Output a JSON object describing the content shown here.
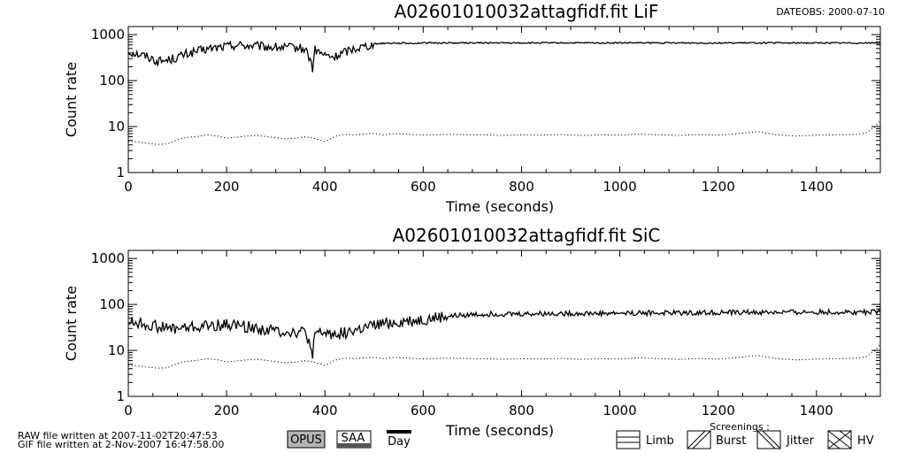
{
  "header": {
    "dateobs": "DATEOBS: 2000-07-10"
  },
  "footer": {
    "raw_written": "RAW file written at 2007-11-02T20:47:53",
    "gif_written": "GIF file written at  2-Nov-2007 16:47:58.00",
    "opus": "OPUS",
    "saa": "SAA",
    "day": "Day",
    "screenings_title": "Screenings :",
    "screenings": [
      "Limb",
      "Burst",
      "Jitter",
      "HV"
    ]
  },
  "chart_data": [
    {
      "type": "line",
      "title": "A02601010032attagfidf.fit  LiF",
      "xlabel": "Time (seconds)",
      "ylabel": "Count rate",
      "xlim": [
        0,
        1530
      ],
      "ylim": [
        1,
        1500
      ],
      "yscale": "log",
      "x_ticks": [
        "0",
        "200",
        "400",
        "600",
        "800",
        "1000",
        "1200",
        "1400"
      ],
      "y_ticks": [
        "1",
        "10",
        "100",
        "1000"
      ],
      "grid": false,
      "series": [
        {
          "style": "solid",
          "x": [
            0,
            20,
            40,
            60,
            80,
            100,
            120,
            140,
            160,
            180,
            200,
            220,
            240,
            260,
            280,
            300,
            320,
            340,
            360,
            375,
            380,
            400,
            420,
            440,
            460,
            480,
            500,
            520,
            540,
            560,
            580,
            600,
            650,
            700,
            750,
            800,
            850,
            900,
            950,
            1000,
            1050,
            1100,
            1150,
            1200,
            1250,
            1300,
            1350,
            1400,
            1450,
            1500,
            1530
          ],
          "y": [
            430,
            380,
            330,
            260,
            280,
            320,
            380,
            430,
            480,
            520,
            560,
            600,
            580,
            560,
            540,
            530,
            520,
            520,
            480,
            180,
            460,
            350,
            320,
            420,
            500,
            560,
            630,
            650,
            660,
            650,
            650,
            660,
            660,
            660,
            660,
            660,
            660,
            660,
            660,
            660,
            660,
            660,
            660,
            660,
            660,
            660,
            660,
            660,
            660,
            660,
            660
          ]
        },
        {
          "style": "dotted",
          "x": [
            0,
            20,
            40,
            60,
            80,
            100,
            120,
            140,
            160,
            180,
            200,
            220,
            240,
            260,
            280,
            300,
            320,
            340,
            360,
            380,
            400,
            420,
            440,
            460,
            480,
            500,
            520,
            540,
            560,
            580,
            600,
            640,
            680,
            720,
            760,
            800,
            840,
            880,
            920,
            960,
            1000,
            1040,
            1080,
            1120,
            1160,
            1200,
            1240,
            1280,
            1320,
            1360,
            1400,
            1440,
            1480,
            1500,
            1520,
            1530
          ],
          "y": [
            4.8,
            4.6,
            4.3,
            4.1,
            4.2,
            5.2,
            5.8,
            6.1,
            6.6,
            6.3,
            5.6,
            5.9,
            6.2,
            6.4,
            6.1,
            5.7,
            5.4,
            5.6,
            6.0,
            5.5,
            4.7,
            6.1,
            6.8,
            6.6,
            6.9,
            7.1,
            6.6,
            7.0,
            6.9,
            6.7,
            6.5,
            6.8,
            6.7,
            6.6,
            6.4,
            6.6,
            6.5,
            6.7,
            6.4,
            6.6,
            6.5,
            6.9,
            6.6,
            6.4,
            6.7,
            6.5,
            7.0,
            7.8,
            6.6,
            6.2,
            6.5,
            6.6,
            6.8,
            7.2,
            10.0,
            14.0
          ]
        }
      ]
    },
    {
      "type": "line",
      "title": "A02601010032attagfidf.fit  SiC",
      "xlabel": "Time (seconds)",
      "ylabel": "Count rate",
      "xlim": [
        0,
        1530
      ],
      "ylim": [
        1,
        1500
      ],
      "yscale": "log",
      "x_ticks": [
        "0",
        "200",
        "400",
        "600",
        "800",
        "1000",
        "1200",
        "1400"
      ],
      "y_ticks": [
        "1",
        "10",
        "100",
        "1000"
      ],
      "grid": false,
      "series": [
        {
          "style": "solid",
          "x": [
            0,
            20,
            40,
            60,
            80,
            100,
            120,
            140,
            160,
            180,
            200,
            220,
            240,
            260,
            280,
            300,
            320,
            340,
            360,
            375,
            380,
            400,
            420,
            440,
            460,
            480,
            500,
            520,
            540,
            560,
            580,
            600,
            650,
            700,
            750,
            800,
            850,
            900,
            950,
            1000,
            1050,
            1100,
            1150,
            1200,
            1250,
            1300,
            1350,
            1400,
            1450,
            1500,
            1530
          ],
          "y": [
            42,
            40,
            36,
            33,
            30,
            30,
            31,
            32,
            34,
            35,
            36,
            36,
            33,
            30,
            28,
            27,
            26,
            25,
            25,
            5,
            24,
            24,
            23,
            24,
            27,
            30,
            34,
            38,
            40,
            42,
            44,
            46,
            55,
            60,
            62,
            62,
            63,
            64,
            64,
            65,
            65,
            66,
            66,
            67,
            67,
            67,
            68,
            68,
            68,
            68,
            68
          ]
        },
        {
          "style": "dotted",
          "x": [
            0,
            20,
            40,
            60,
            80,
            100,
            120,
            140,
            160,
            180,
            200,
            220,
            240,
            260,
            280,
            300,
            320,
            340,
            360,
            380,
            400,
            420,
            440,
            460,
            480,
            500,
            520,
            540,
            560,
            580,
            600,
            640,
            680,
            720,
            760,
            800,
            840,
            880,
            920,
            960,
            1000,
            1040,
            1080,
            1120,
            1160,
            1200,
            1240,
            1280,
            1320,
            1360,
            1400,
            1440,
            1480,
            1500,
            1520,
            1530
          ],
          "y": [
            4.8,
            4.6,
            4.3,
            4.1,
            4.2,
            5.2,
            5.8,
            6.1,
            6.6,
            6.3,
            5.6,
            5.9,
            6.2,
            6.4,
            6.1,
            5.7,
            5.4,
            5.6,
            6.0,
            5.5,
            4.7,
            6.1,
            6.8,
            6.6,
            6.9,
            7.1,
            6.6,
            7.0,
            6.9,
            6.7,
            6.5,
            6.8,
            6.7,
            6.6,
            6.4,
            6.6,
            6.5,
            6.7,
            6.4,
            6.6,
            6.5,
            6.9,
            6.6,
            6.4,
            6.7,
            6.5,
            7.0,
            7.8,
            6.6,
            6.2,
            6.5,
            6.6,
            6.8,
            7.2,
            10.0,
            14.0
          ]
        }
      ]
    }
  ]
}
